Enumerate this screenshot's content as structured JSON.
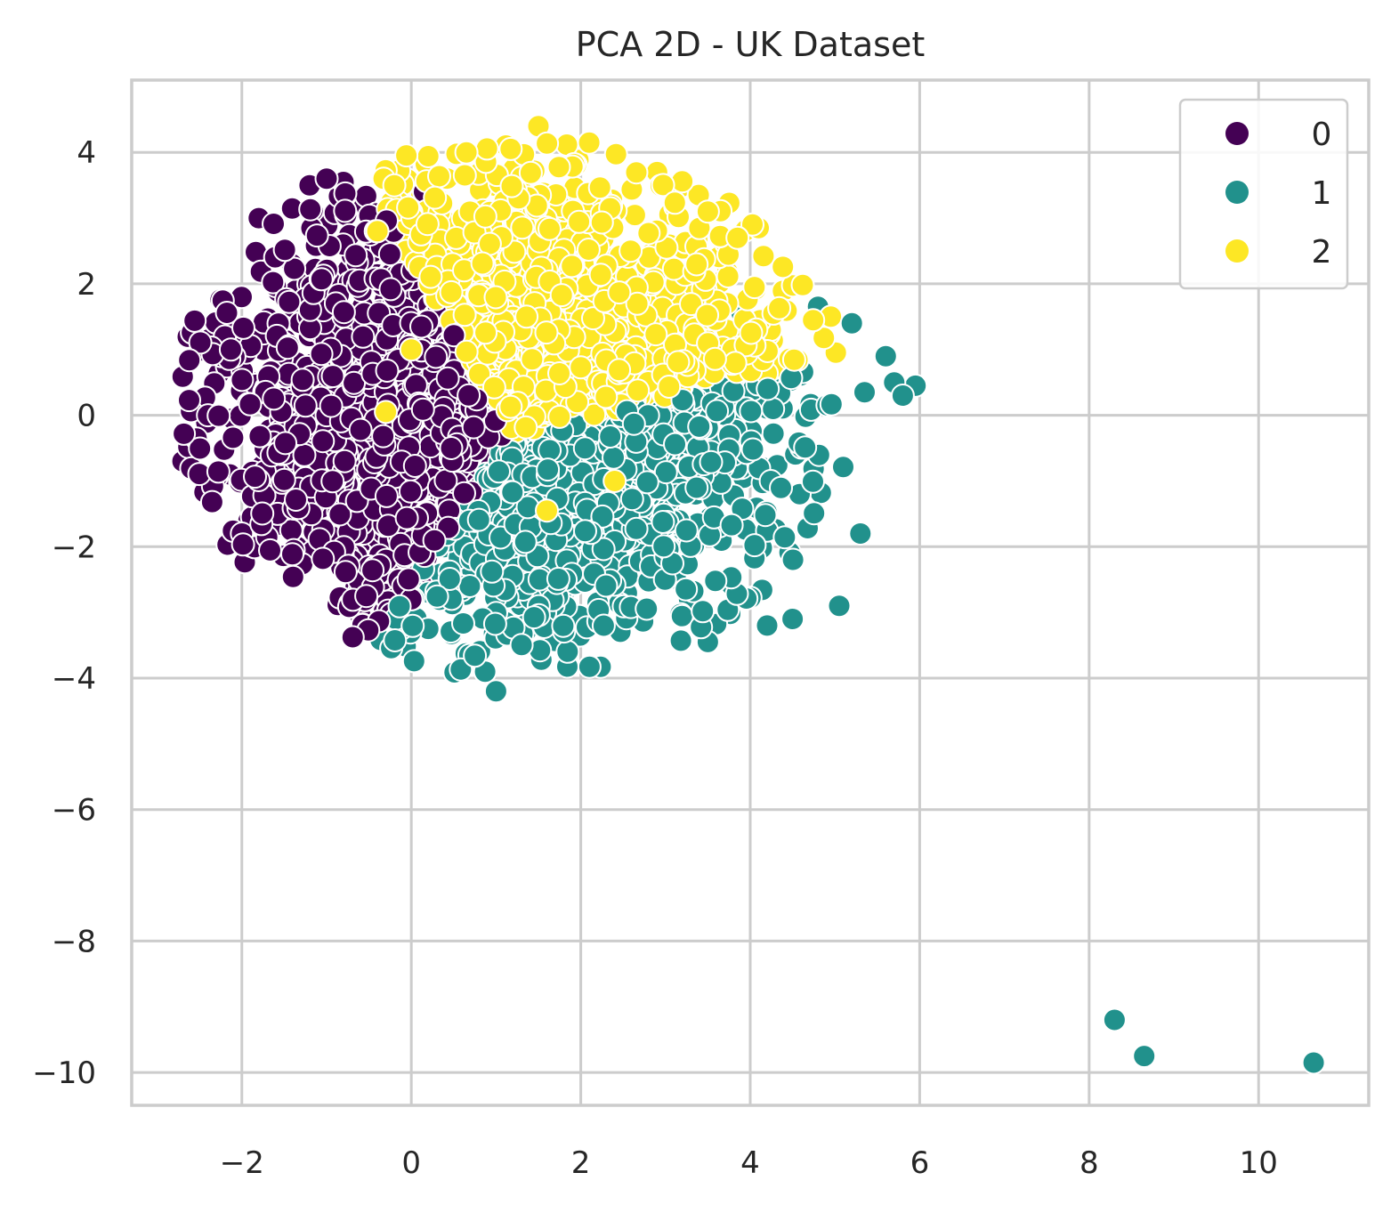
{
  "chart_data": {
    "type": "scatter",
    "title": "PCA 2D - UK Dataset",
    "xlabel": "",
    "ylabel": "",
    "xlim": [
      -3.3,
      11.3
    ],
    "ylim": [
      -10.5,
      5.1
    ],
    "xticks": [
      -2,
      0,
      2,
      4,
      6,
      8,
      10
    ],
    "yticks": [
      4,
      2,
      0,
      -2,
      -4,
      -6,
      -8,
      -10
    ],
    "grid": true,
    "legend_position": "top-right",
    "series": [
      {
        "name": "0",
        "color": "#440154",
        "cluster": {
          "cx": -0.9,
          "cy": 0.6,
          "sx": 0.85,
          "sy": 1.45,
          "n": 950,
          "xmin": -2.7,
          "xmax": 0.9,
          "ymin": -2.8,
          "ymax": 3.6
        },
        "points": [
          [
            -2.7,
            -0.7
          ],
          [
            -2.2,
            1.2
          ],
          [
            -1.8,
            3.0
          ],
          [
            -1.0,
            3.6
          ],
          [
            -0.8,
            3.55
          ],
          [
            -1.2,
            3.5
          ],
          [
            0.15,
            3.4
          ],
          [
            0.8,
            2.1
          ],
          [
            0.5,
            1.9
          ],
          [
            0.0,
            -2.8
          ],
          [
            0.2,
            -2.4
          ],
          [
            -1.3,
            -2.3
          ],
          [
            -2.0,
            -1.8
          ],
          [
            -2.4,
            0.0
          ],
          [
            0.8,
            -1.1
          ],
          [
            -0.5,
            -2.3
          ],
          [
            -1.6,
            -0.5
          ],
          [
            -0.3,
            1.5
          ],
          [
            0.6,
            1.0
          ],
          [
            -1.0,
            0.0
          ]
        ]
      },
      {
        "name": "1",
        "color": "#21918c",
        "cluster": {
          "cx": 2.9,
          "cy": -1.7,
          "sx": 1.05,
          "sy": 1.05,
          "n": 950,
          "xmin": 0.2,
          "xmax": 5.3,
          "ymin": -4.2,
          "ymax": 1.6
        },
        "points": [
          [
            5.6,
            0.9
          ],
          [
            5.7,
            0.5
          ],
          [
            5.95,
            0.45
          ],
          [
            5.8,
            0.3
          ],
          [
            5.35,
            0.35
          ],
          [
            5.3,
            -1.8
          ],
          [
            5.05,
            -2.9
          ],
          [
            4.5,
            -3.1
          ],
          [
            4.2,
            -3.2
          ],
          [
            3.5,
            -3.45
          ],
          [
            1.0,
            -4.2
          ],
          [
            0.2,
            -3.25
          ],
          [
            4.8,
            1.65
          ],
          [
            3.9,
            1.55
          ],
          [
            5.2,
            1.4
          ],
          [
            8.3,
            -9.2
          ],
          [
            8.65,
            -9.75
          ],
          [
            10.65,
            -9.85
          ]
        ]
      },
      {
        "name": "2",
        "color": "#fde725",
        "cluster": {
          "cx": 1.9,
          "cy": 1.8,
          "sx": 0.95,
          "sy": 1.2,
          "n": 950,
          "xmin": -0.4,
          "xmax": 4.1,
          "ymin": -1.6,
          "ymax": 4.4
        },
        "points": [
          [
            1.5,
            4.4
          ],
          [
            2.1,
            4.15
          ],
          [
            0.65,
            4.0
          ],
          [
            -0.2,
            3.5
          ],
          [
            4.1,
            2.85
          ],
          [
            4.05,
            1.95
          ],
          [
            3.85,
            2.7
          ],
          [
            2.4,
            -1.0
          ],
          [
            1.6,
            -1.45
          ],
          [
            -0.4,
            2.8
          ],
          [
            -0.3,
            0.05
          ],
          [
            0.0,
            1.0
          ],
          [
            2.9,
            3.7
          ],
          [
            3.5,
            3.1
          ]
        ]
      }
    ],
    "legend": [
      {
        "label": "0",
        "color": "#440154"
      },
      {
        "label": "1",
        "color": "#21918c"
      },
      {
        "label": "2",
        "color": "#fde725"
      }
    ]
  }
}
